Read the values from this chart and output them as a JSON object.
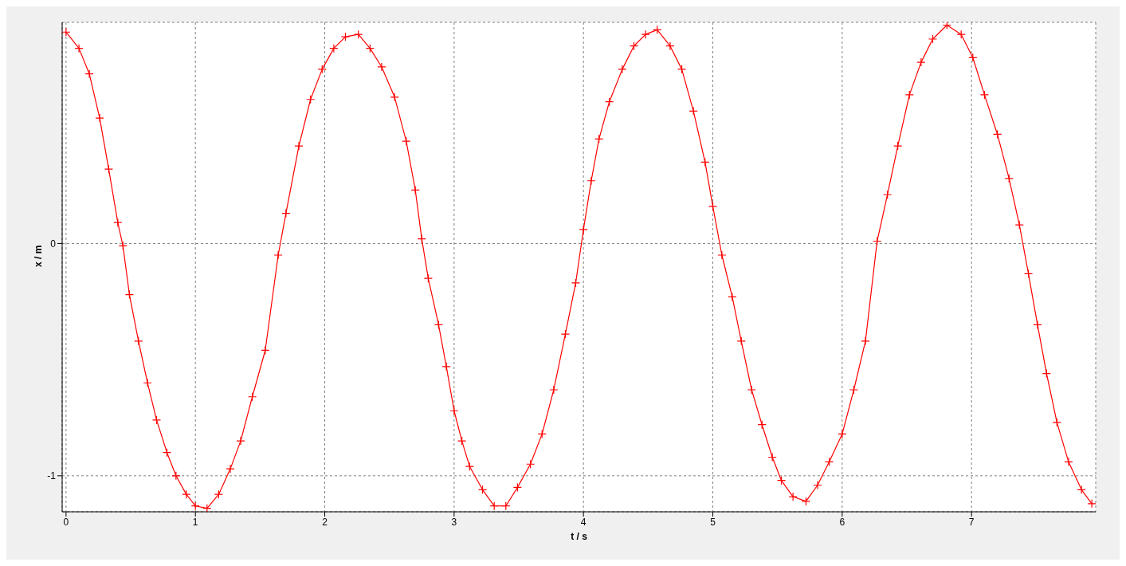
{
  "chart_data": {
    "type": "line",
    "xlabel": "t / s",
    "ylabel": "x / m",
    "x": [
      0,
      0.1,
      0.18,
      0.26,
      0.33,
      0.4,
      0.44,
      0.49,
      0.56,
      0.63,
      0.7,
      0.78,
      0.85,
      0.93,
      1.0,
      1.09,
      1.18,
      1.27,
      1.35,
      1.44,
      1.54,
      1.64,
      1.7,
      1.8,
      1.89,
      1.98,
      2.07,
      2.16,
      2.26,
      2.35,
      2.44,
      2.54,
      2.63,
      2.7,
      2.75,
      2.8,
      2.88,
      2.94,
      3.0,
      3.06,
      3.12,
      3.22,
      3.31,
      3.4,
      3.49,
      3.59,
      3.68,
      3.77,
      3.86,
      3.94,
      4.0,
      4.06,
      4.12,
      4.2,
      4.3,
      4.39,
      4.48,
      4.57,
      4.67,
      4.76,
      4.85,
      4.94,
      5.0,
      5.07,
      5.15,
      5.22,
      5.3,
      5.38,
      5.46,
      5.53,
      5.62,
      5.72,
      5.81,
      5.9,
      6.0,
      6.09,
      6.18,
      6.27,
      6.35,
      6.43,
      6.52,
      6.61,
      6.7,
      6.81,
      6.92,
      7.01,
      7.1,
      7.2,
      7.29,
      7.37,
      7.44,
      7.51,
      7.58,
      7.66,
      7.75,
      7.85,
      7.93
    ],
    "series": [
      {
        "color": "#ff0000",
        "values": [
          0.91,
          0.84,
          0.73,
          0.54,
          0.32,
          0.09,
          -0.01,
          -0.22,
          -0.42,
          -0.6,
          -0.76,
          -0.9,
          -1.0,
          -1.08,
          -1.13,
          -1.14,
          -1.08,
          -0.97,
          -0.85,
          -0.66,
          -0.46,
          -0.05,
          0.13,
          0.42,
          0.62,
          0.75,
          0.84,
          0.89,
          0.9,
          0.84,
          0.76,
          0.63,
          0.44,
          0.23,
          0.02,
          -0.15,
          -0.35,
          -0.53,
          -0.72,
          -0.85,
          -0.96,
          -1.06,
          -1.13,
          -1.13,
          -1.05,
          -0.95,
          -0.82,
          -0.63,
          -0.39,
          -0.17,
          0.06,
          0.27,
          0.45,
          0.61,
          0.75,
          0.85,
          0.9,
          0.92,
          0.85,
          0.75,
          0.57,
          0.35,
          0.16,
          -0.05,
          -0.23,
          -0.42,
          -0.63,
          -0.78,
          -0.92,
          -1.02,
          -1.09,
          -1.11,
          -1.04,
          -0.94,
          -0.82,
          -0.63,
          -0.42,
          0.01,
          0.21,
          0.42,
          0.64,
          0.78,
          0.88,
          0.94,
          0.9,
          0.8,
          0.64,
          0.47,
          0.28,
          0.08,
          -0.13,
          -0.35,
          -0.56,
          -0.77,
          -0.94,
          -1.06,
          -1.12
        ]
      }
    ],
    "xlim": [
      -0.03,
      7.96
    ],
    "ylim": [
      -1.155,
      0.952
    ],
    "xticks": [
      0,
      1,
      2,
      3,
      4,
      5,
      6,
      7
    ],
    "yticks": [
      -1,
      0
    ],
    "grid": true,
    "marker": "cross",
    "line_style": "solid"
  }
}
